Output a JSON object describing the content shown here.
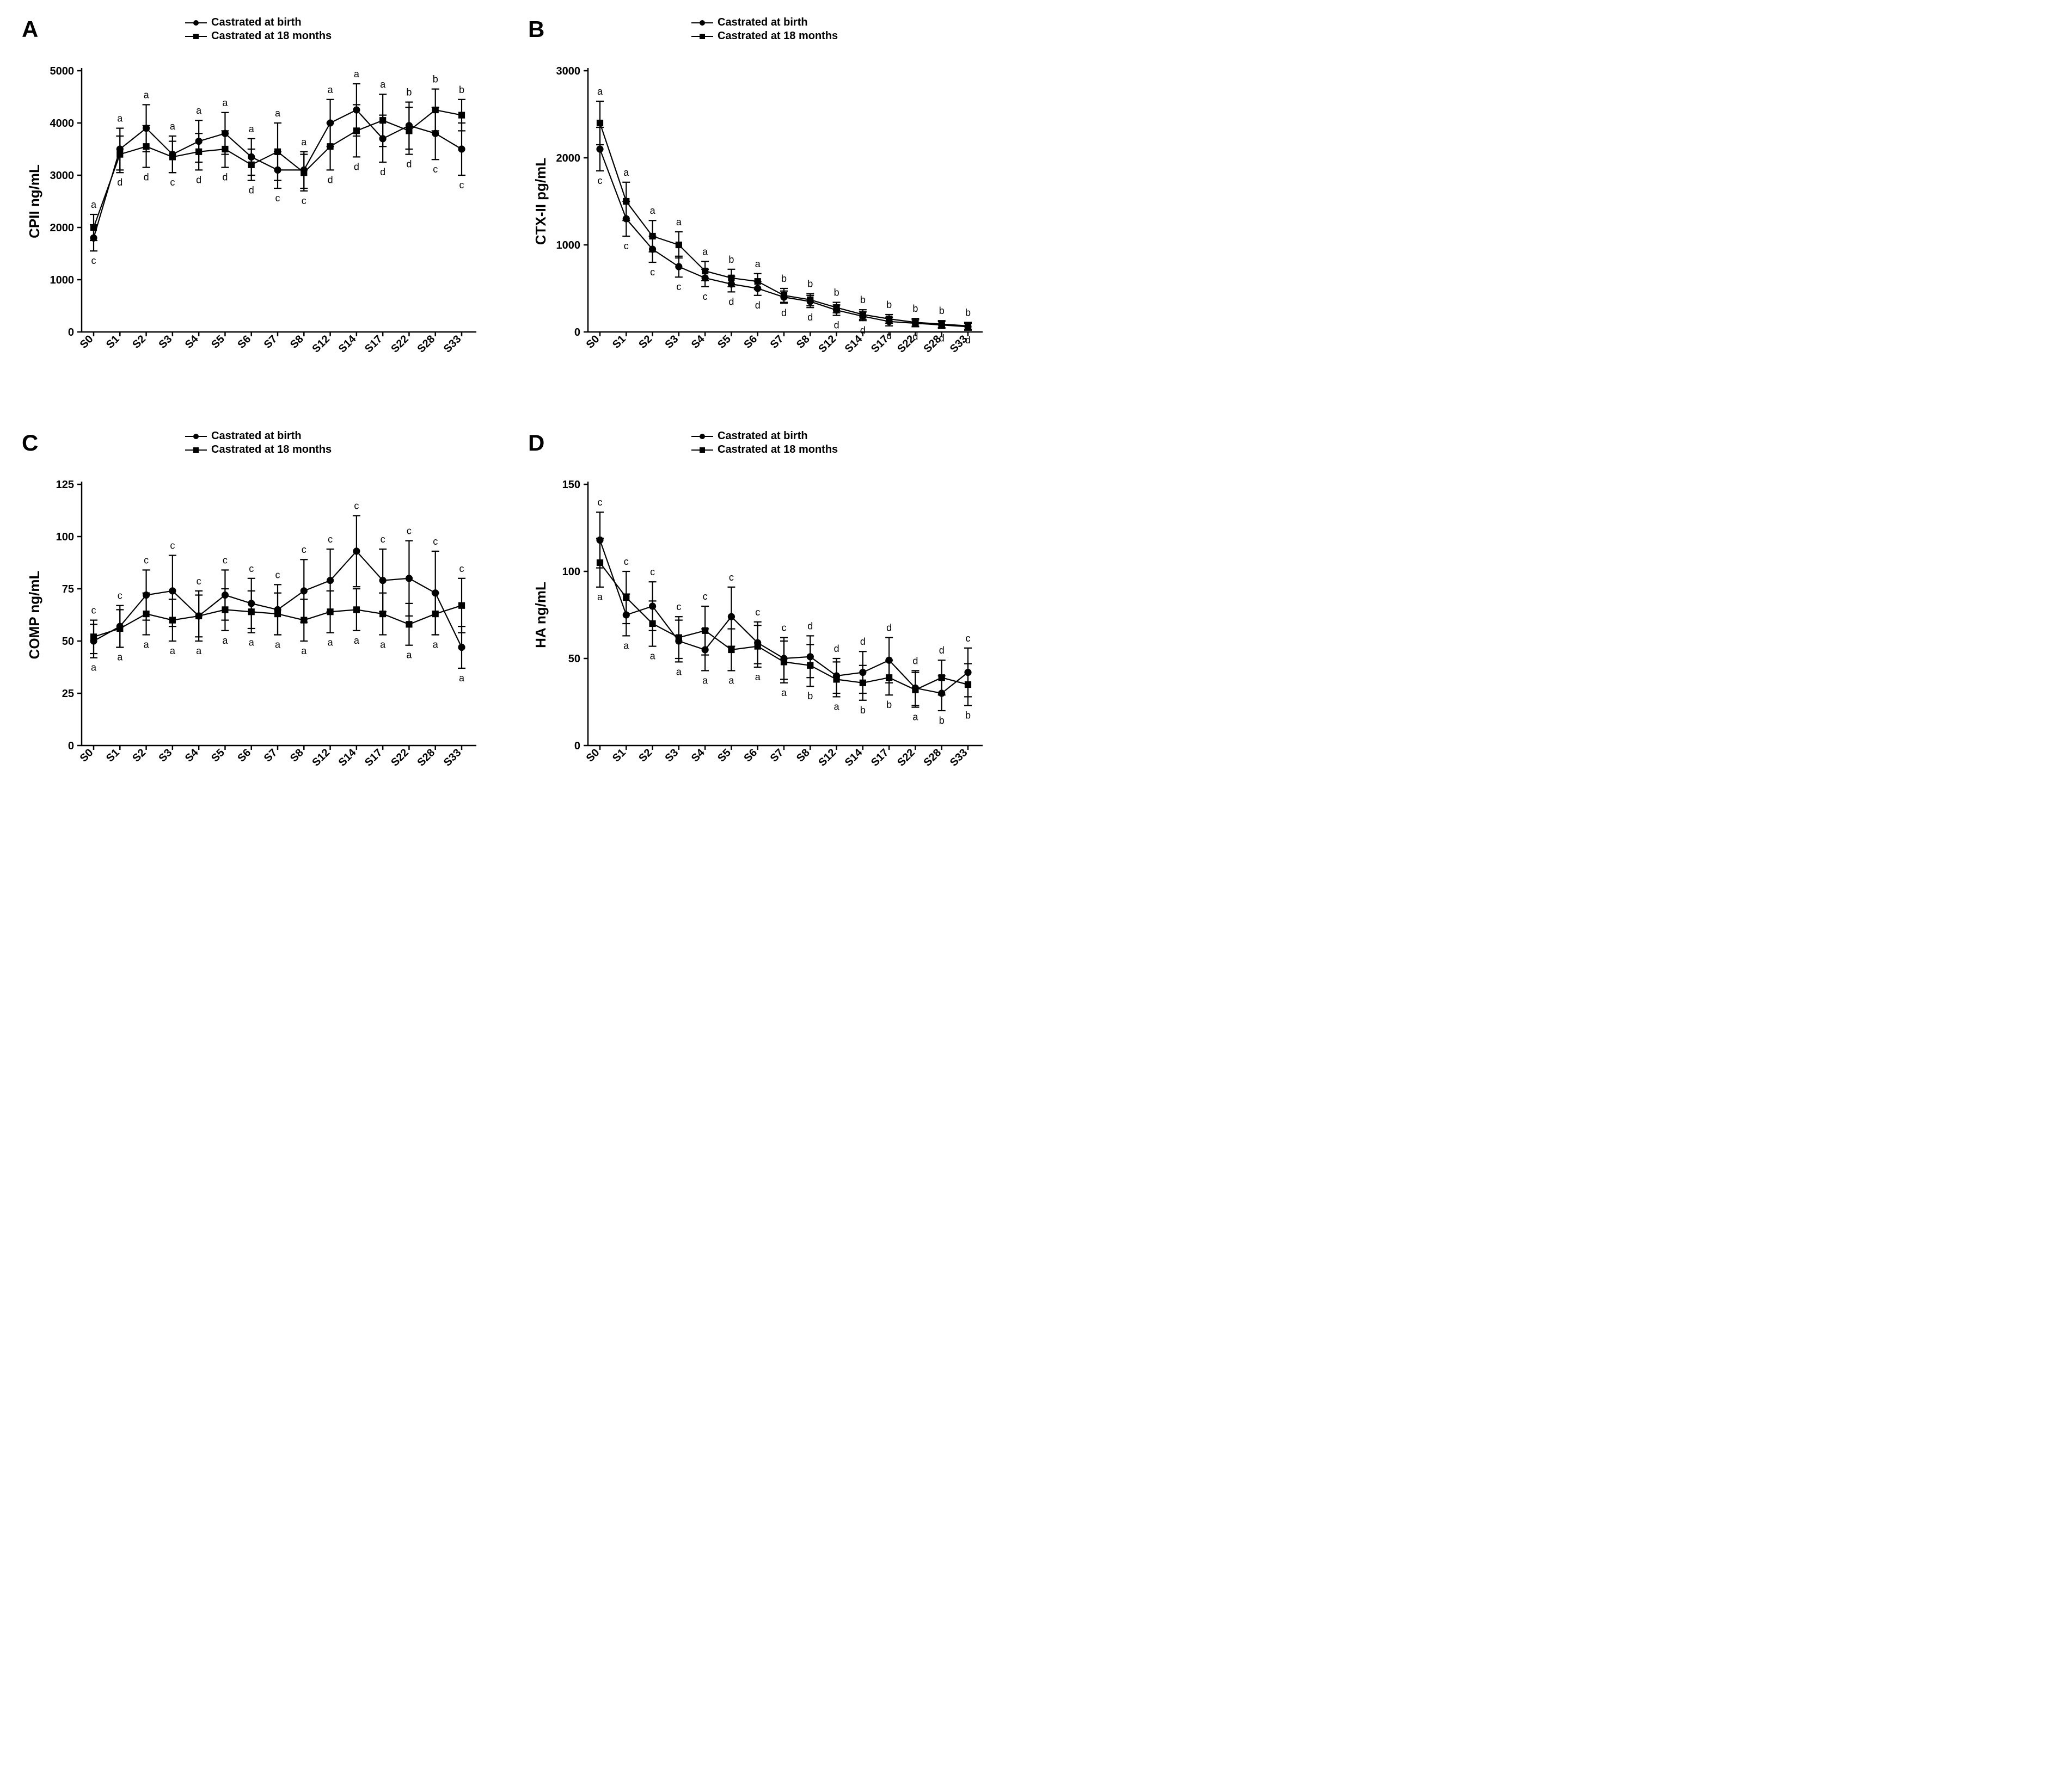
{
  "global": {
    "x_labels": [
      "S0",
      "S1",
      "S2",
      "S3",
      "S4",
      "S5",
      "S6",
      "S7",
      "S8",
      "S12",
      "S14",
      "S17",
      "S22",
      "S28",
      "S33"
    ],
    "legend": {
      "series1": "Castrated at birth",
      "series2": "Castrated at 18 months"
    },
    "colors": {
      "line": "#000000",
      "axis": "#000000",
      "text": "#000000",
      "background": "#ffffff"
    },
    "marker": {
      "circle_r": 5.5,
      "square_s": 10
    },
    "line_width": 2.2,
    "error_cap": 7,
    "axis_width": 2.5,
    "tick_len": 8,
    "font": {
      "axis_label": 26,
      "tick": 20,
      "sig": 18,
      "panel": 42,
      "legend": 20
    }
  },
  "panels": {
    "A": {
      "ylabel": "CPII ng/mL",
      "ylim": [
        0,
        5000
      ],
      "ytick_step": 1000,
      "series1": {
        "y": [
          1800,
          3500,
          3900,
          3400,
          3650,
          3800,
          3350,
          3100,
          3100,
          4000,
          4250,
          3700,
          3950,
          3800,
          3500
        ],
        "err": [
          250,
          400,
          450,
          350,
          400,
          400,
          350,
          350,
          350,
          450,
          500,
          450,
          450,
          500,
          500
        ]
      },
      "series2": {
        "y": [
          2000,
          3400,
          3550,
          3350,
          3450,
          3500,
          3200,
          3450,
          3050,
          3550,
          3850,
          4050,
          3850,
          4250,
          4150
        ],
        "err": [
          250,
          350,
          400,
          300,
          350,
          350,
          300,
          550,
          350,
          450,
          500,
          500,
          450,
          400,
          300
        ]
      },
      "sig_top": [
        "a",
        "a",
        "a",
        "a",
        "a",
        "a",
        "a",
        "a",
        "a",
        "a",
        "a",
        "a",
        "b",
        "b",
        "b"
      ],
      "sig_bottom": [
        "c",
        "d",
        "d",
        "c",
        "d",
        "d",
        "d",
        "c",
        "c",
        "d",
        "d",
        "d",
        "d",
        "c",
        "c"
      ]
    },
    "B": {
      "ylabel": "CTX-II pg/mL",
      "ylim": [
        0,
        3000
      ],
      "ytick_step": 1000,
      "series1": {
        "y": [
          2100,
          1300,
          950,
          750,
          620,
          550,
          500,
          400,
          350,
          250,
          180,
          120,
          100,
          80,
          60
        ],
        "err": [
          250,
          200,
          150,
          120,
          100,
          90,
          80,
          70,
          70,
          60,
          50,
          50,
          40,
          40,
          40
        ]
      },
      "series2": {
        "y": [
          2400,
          1500,
          1100,
          1000,
          700,
          620,
          580,
          420,
          370,
          280,
          200,
          150,
          110,
          90,
          70
        ],
        "err": [
          250,
          220,
          180,
          150,
          110,
          100,
          90,
          80,
          70,
          60,
          55,
          50,
          45,
          40,
          40
        ]
      },
      "sig_top": [
        "a",
        "a",
        "a",
        "a",
        "a",
        "b",
        "a",
        "b",
        "b",
        "b",
        "b",
        "b",
        "b",
        "b",
        "b"
      ],
      "sig_bottom": [
        "c",
        "c",
        "c",
        "c",
        "c",
        "d",
        "d",
        "d",
        "d",
        "d",
        "d",
        "d",
        "d",
        "d",
        "d"
      ]
    },
    "C": {
      "ylabel": "COMP ng/mL",
      "ylim": [
        0,
        125
      ],
      "ytick_step": 25,
      "series1": {
        "y": [
          50,
          57,
          72,
          74,
          62,
          72,
          68,
          65,
          74,
          79,
          93,
          79,
          80,
          73,
          47
        ],
        "err": [
          8,
          10,
          12,
          17,
          12,
          12,
          12,
          12,
          15,
          15,
          17,
          15,
          18,
          20,
          10
        ]
      },
      "series2": {
        "y": [
          52,
          56,
          63,
          60,
          62,
          65,
          64,
          63,
          60,
          64,
          65,
          63,
          58,
          63,
          67
        ],
        "err": [
          8,
          9,
          10,
          10,
          10,
          10,
          10,
          10,
          10,
          10,
          10,
          10,
          10,
          10,
          13
        ]
      },
      "sig_top": [
        "c",
        "c",
        "c",
        "c",
        "c",
        "c",
        "c",
        "c",
        "c",
        "c",
        "c",
        "c",
        "c",
        "c",
        "c"
      ],
      "sig_bottom": [
        "a",
        "a",
        "a",
        "a",
        "a",
        "a",
        "a",
        "a",
        "a",
        "a",
        "a",
        "a",
        "a",
        "a",
        "a"
      ]
    },
    "D": {
      "ylabel": "HA ng/mL",
      "ylim": [
        0,
        150
      ],
      "ytick_step": 50,
      "series1": {
        "y": [
          118,
          75,
          80,
          60,
          55,
          74,
          59,
          50,
          51,
          40,
          42,
          49,
          33,
          30,
          42
        ],
        "err": [
          16,
          12,
          14,
          12,
          12,
          17,
          12,
          12,
          12,
          10,
          12,
          13,
          10,
          10,
          14
        ]
      },
      "series2": {
        "y": [
          105,
          85,
          70,
          62,
          66,
          55,
          57,
          48,
          46,
          38,
          36,
          39,
          32,
          39,
          35
        ],
        "err": [
          14,
          15,
          13,
          12,
          14,
          12,
          12,
          12,
          12,
          10,
          10,
          10,
          10,
          10,
          12
        ]
      },
      "sig_top": [
        "c",
        "c",
        "c",
        "c",
        "c",
        "c",
        "c",
        "c",
        "d",
        "d",
        "d",
        "d",
        "d",
        "d",
        "c"
      ],
      "sig_bottom": [
        "a",
        "a",
        "a",
        "a",
        "a",
        "a",
        "a",
        "a",
        "b",
        "a",
        "b",
        "b",
        "a",
        "b",
        "b"
      ]
    }
  }
}
